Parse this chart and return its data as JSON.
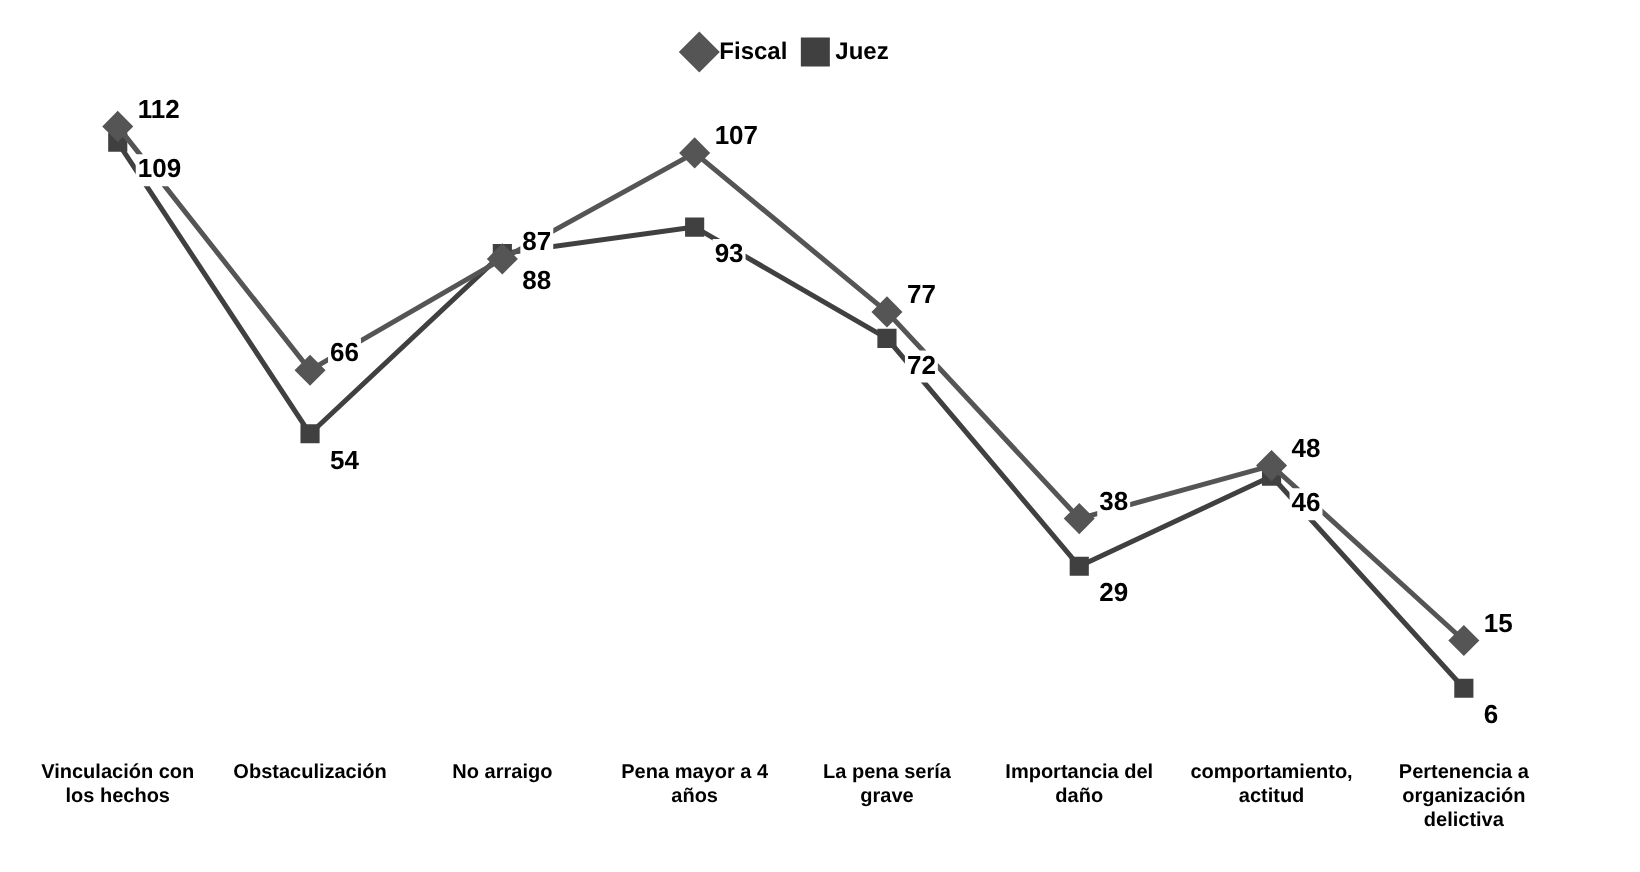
{
  "chart_data": {
    "type": "line",
    "categories": [
      "Vinculación con los hechos",
      "Obstaculización",
      "No arraigo",
      "Pena mayor a 4 años",
      "La pena sería grave",
      "Importancia del daño",
      "comportamiento, actitud",
      "Pertenencia a organización delictiva"
    ],
    "series": [
      {
        "name": "Fiscal",
        "color": "#555555",
        "marker": "diamond",
        "values": [
          112,
          66,
          87,
          107,
          77,
          38,
          48,
          15
        ]
      },
      {
        "name": "Juez",
        "color": "#404040",
        "marker": "square",
        "values": [
          109,
          54,
          88,
          93,
          72,
          29,
          46,
          6
        ]
      }
    ],
    "data_labels": true,
    "legend": "top",
    "grid": false,
    "line_style": "solid"
  }
}
